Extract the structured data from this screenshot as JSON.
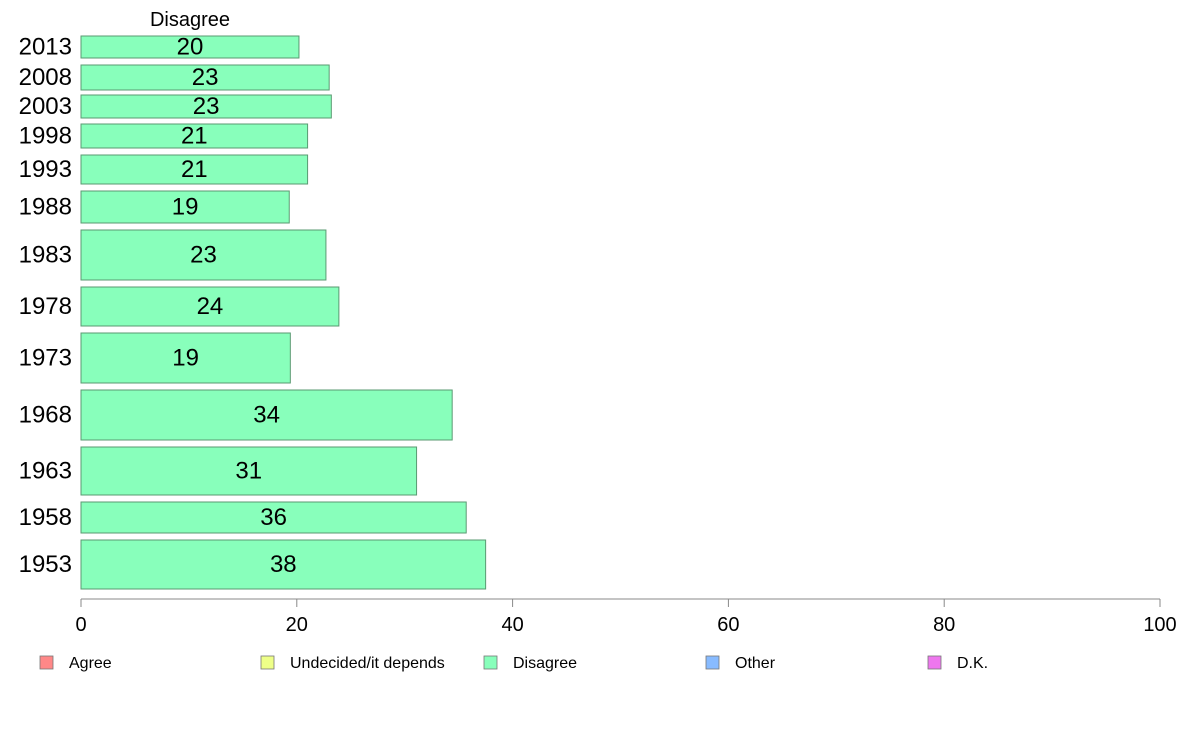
{
  "chart_data": {
    "type": "bar",
    "orientation": "horizontal",
    "panel_title": "Disagree",
    "categories": [
      "2013",
      "2008",
      "2003",
      "1998",
      "1993",
      "1988",
      "1983",
      "1978",
      "1973",
      "1968",
      "1963",
      "1958",
      "1953"
    ],
    "values": [
      20.2,
      23.0,
      23.2,
      21.0,
      21.0,
      19.3,
      22.7,
      23.9,
      19.4,
      34.4,
      31.1,
      35.7,
      37.5
    ],
    "data_labels": [
      "20",
      "23",
      "23",
      "21",
      "21",
      "19",
      "23",
      "24",
      "19",
      "34",
      "31",
      "36",
      "38"
    ],
    "bar_color": "#88ffbb",
    "bar_border": "#5a9a72",
    "xlim": [
      0,
      100
    ],
    "x_ticks": [
      0,
      20,
      40,
      60,
      80,
      100
    ],
    "xlabel": "",
    "ylabel": "",
    "grid": false,
    "legend_position": "bottom",
    "legend": [
      {
        "label": "Agree",
        "color": "#ff8888"
      },
      {
        "label": "Undecided/it depends",
        "color": "#eeff88"
      },
      {
        "label": "Disagree",
        "color": "#88ffbb"
      },
      {
        "label": "Other",
        "color": "#88bbff"
      },
      {
        "label": "D.K.",
        "color": "#ee77ee"
      }
    ]
  }
}
